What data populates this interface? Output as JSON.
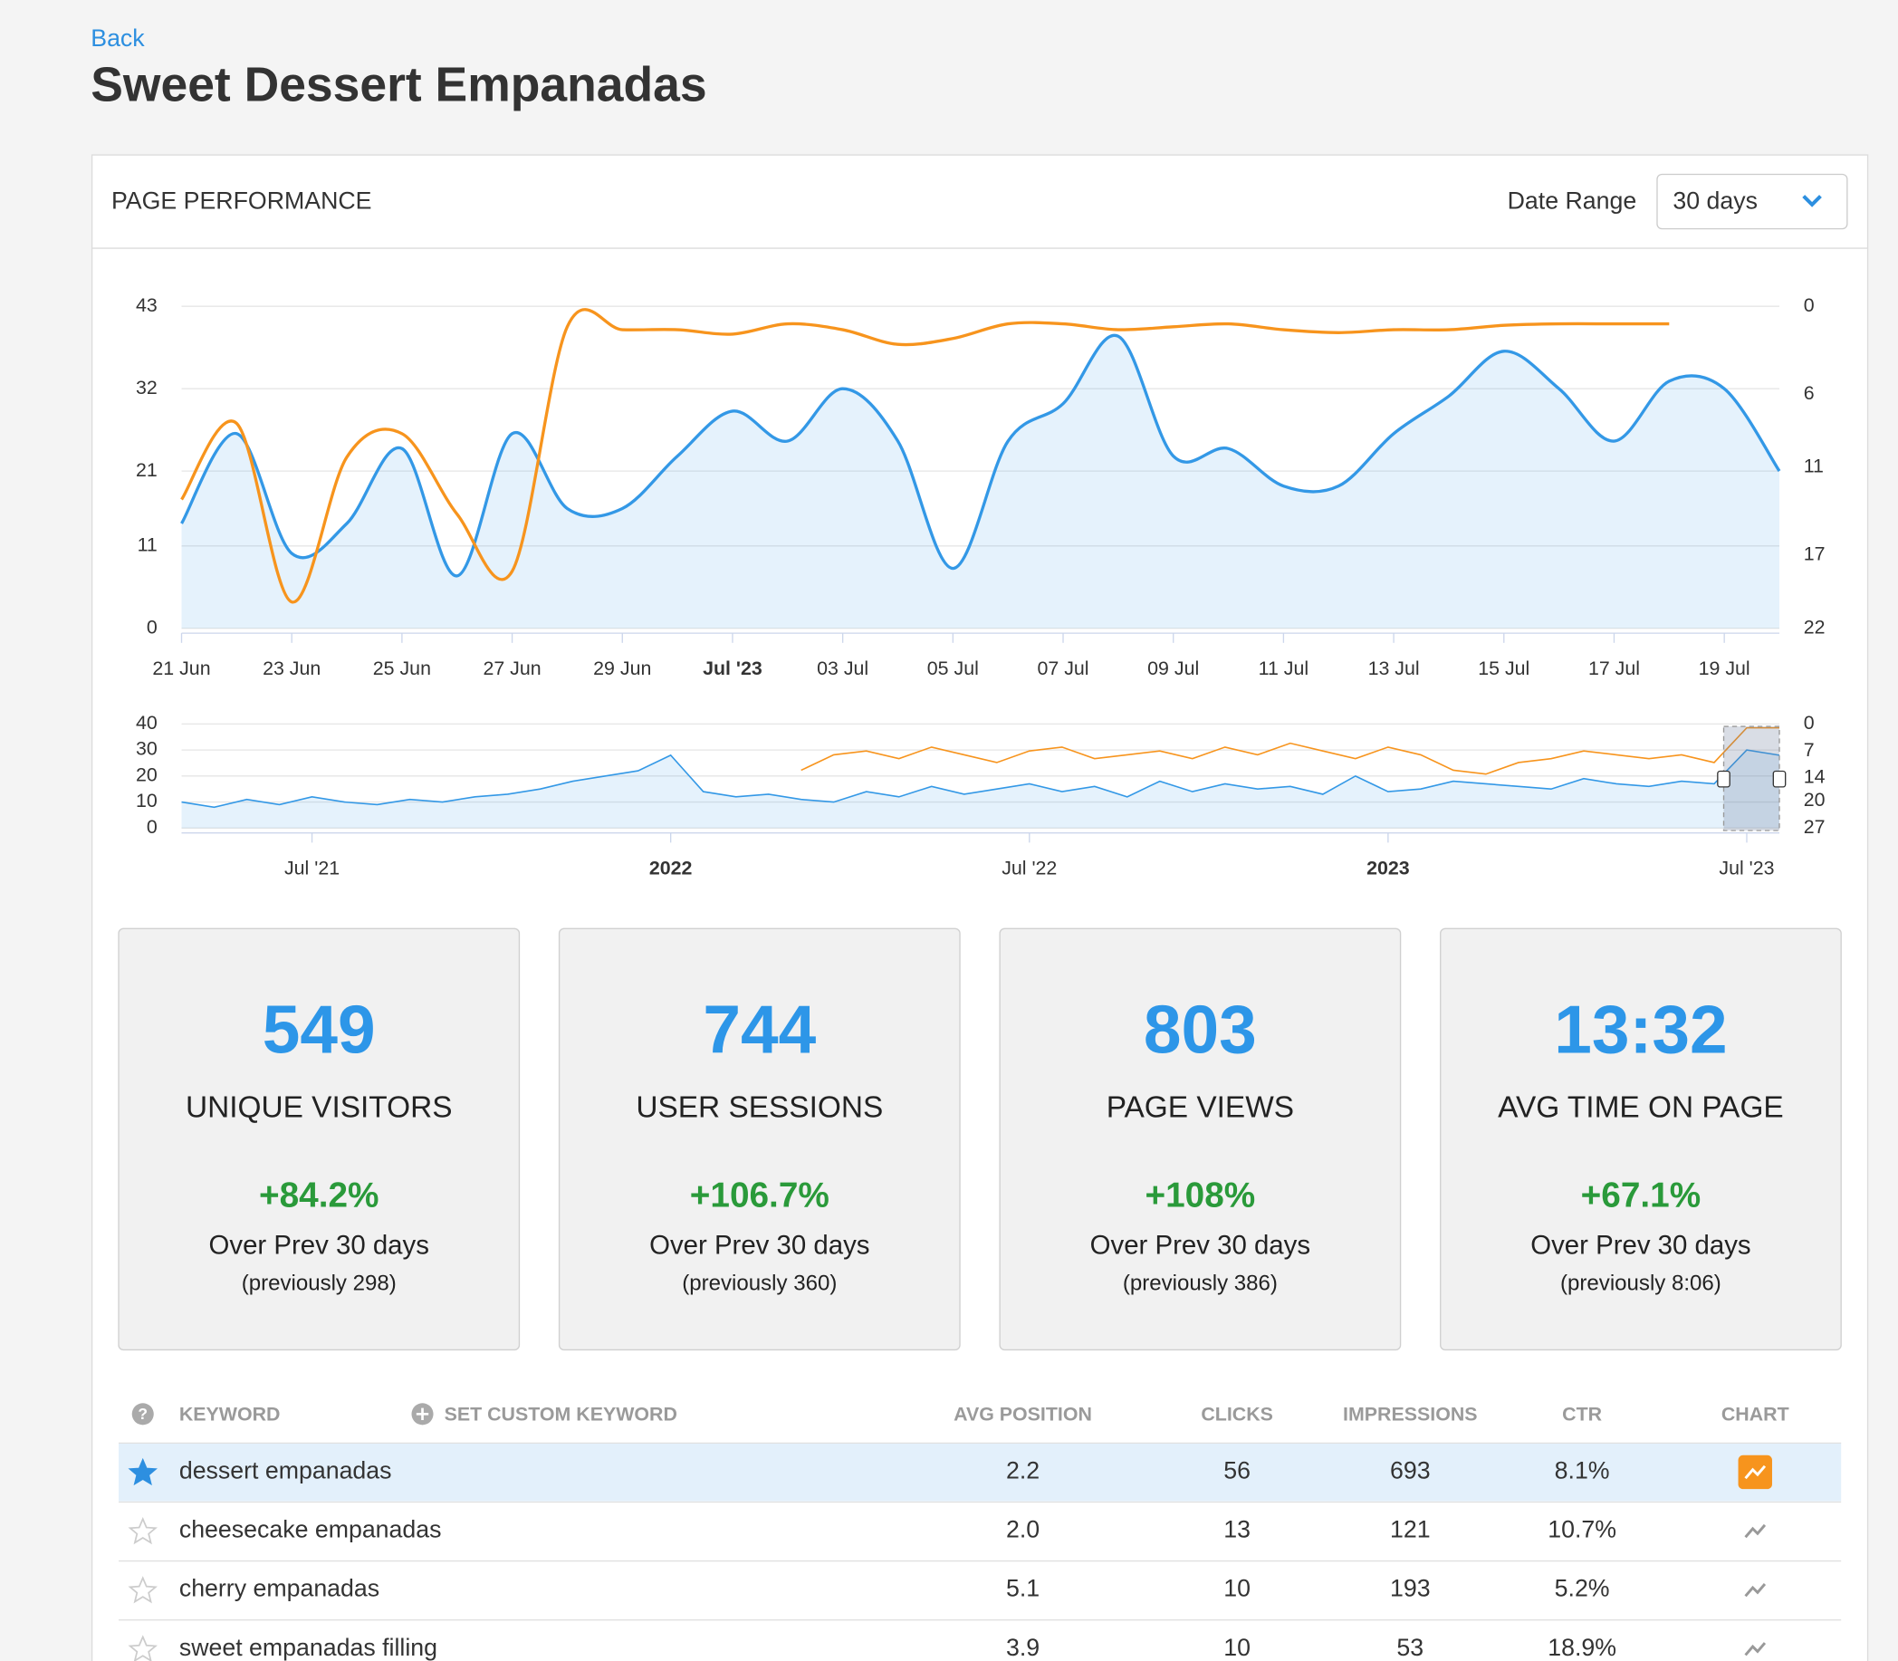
{
  "back": "Back",
  "title": "Sweet Dessert Empanadas",
  "panel": {
    "title": "PAGE PERFORMANCE",
    "date_range_label": "Date Range",
    "date_range": "30 days"
  },
  "chart_data": [
    {
      "type": "line",
      "categories": [
        "21 Jun",
        null,
        "23 Jun",
        null,
        "25 Jun",
        null,
        "27 Jun",
        null,
        "29 Jun",
        null,
        "Jul '23",
        null,
        "03 Jul",
        null,
        "05 Jul",
        null,
        "07 Jul",
        null,
        "09 Jul",
        null,
        "11 Jul",
        null,
        "13 Jul",
        null,
        "15 Jul",
        null,
        "17 Jul",
        null,
        "19 Jul",
        null
      ],
      "series": [
        {
          "color": "#3398e6",
          "area": true,
          "values": [
            14,
            26,
            10,
            14,
            24,
            7,
            26,
            16,
            16,
            23,
            29,
            25,
            32,
            25,
            8,
            25,
            30,
            39,
            23,
            24,
            19,
            19,
            26,
            31,
            37,
            32,
            25,
            33,
            32,
            21
          ]
        },
        {
          "color": "#f7941d",
          "axis": "y2",
          "values": [
            13.2,
            8.0,
            20.2,
            10.3,
            8.7,
            14.2,
            18.1,
            1.4,
            1.6,
            1.6,
            1.9,
            1.2,
            1.6,
            2.6,
            2.2,
            1.2,
            1.2,
            1.6,
            1.4,
            1.2,
            1.6,
            1.8,
            1.6,
            1.6,
            1.3,
            1.2,
            1.2,
            1.2,
            null,
            null
          ]
        }
      ],
      "ylim": [
        0,
        43
      ],
      "yticks": [
        0,
        11,
        21,
        32,
        43
      ],
      "y2lim": [
        0,
        22
      ],
      "y2ticks": [
        0,
        6,
        11,
        17,
        22
      ],
      "y2_reversed": true,
      "grid": true
    },
    {
      "type": "line",
      "categories": [
        null,
        null,
        null,
        null,
        "Jul '21",
        null,
        null,
        null,
        null,
        null,
        null,
        null,
        null,
        null,
        null,
        "2022",
        null,
        null,
        null,
        null,
        null,
        null,
        null,
        null,
        null,
        null,
        "Jul '22",
        null,
        null,
        null,
        null,
        null,
        null,
        null,
        null,
        null,
        null,
        "2023",
        null,
        null,
        null,
        null,
        null,
        null,
        null,
        null,
        null,
        null,
        "Jul '23",
        null
      ],
      "series": [
        {
          "color": "#3398e6",
          "area": true,
          "values": [
            10,
            8,
            11,
            9,
            12,
            10,
            9,
            11,
            10,
            12,
            13,
            15,
            18,
            20,
            22,
            28,
            14,
            12,
            13,
            11,
            10,
            14,
            12,
            16,
            13,
            15,
            17,
            14,
            16,
            12,
            18,
            14,
            17,
            15,
            16,
            13,
            20,
            14,
            15,
            18,
            17,
            16,
            15,
            19,
            17,
            16,
            18,
            17,
            30,
            28
          ]
        },
        {
          "color": "#f7941d",
          "axis": "y2",
          "values": [
            null,
            null,
            null,
            null,
            null,
            null,
            null,
            null,
            null,
            null,
            null,
            null,
            null,
            null,
            null,
            null,
            null,
            null,
            null,
            12,
            8,
            7,
            9,
            6,
            8,
            10,
            7,
            6,
            9,
            8,
            7,
            9,
            6,
            8,
            5,
            7,
            9,
            6,
            8,
            12,
            13,
            10,
            9,
            7,
            8,
            9,
            8,
            10,
            1,
            1
          ]
        }
      ],
      "ylim": [
        0,
        40
      ],
      "yticks": [
        0,
        10,
        20,
        30,
        40
      ],
      "y2lim": [
        0,
        27
      ],
      "y2ticks": [
        0,
        7,
        14,
        20,
        27
      ],
      "y2_reversed": true,
      "grid": true
    }
  ],
  "stats": [
    {
      "value": "549",
      "label": "UNIQUE VISITORS",
      "change": "+84.2%",
      "period": "Over Prev 30 days",
      "previous": "(previously 298)"
    },
    {
      "value": "744",
      "label": "USER SESSIONS",
      "change": "+106.7%",
      "period": "Over Prev 30 days",
      "previous": "(previously 360)"
    },
    {
      "value": "803",
      "label": "PAGE VIEWS",
      "change": "+108%",
      "period": "Over Prev 30 days",
      "previous": "(previously 386)"
    },
    {
      "value": "13:32",
      "label": "AVG TIME ON PAGE",
      "change": "+67.1%",
      "period": "Over Prev 30 days",
      "previous": "(previously 8:06)"
    }
  ],
  "table": {
    "headers": [
      "KEYWORD",
      "SET CUSTOM KEYWORD",
      "AVG POSITION",
      "CLICKS",
      "IMPRESSIONS",
      "CTR",
      "CHART"
    ],
    "rows": [
      [
        "dessert empanadas",
        "2.2",
        "56",
        "693",
        "8.1%"
      ],
      [
        "cheesecake empanadas",
        "2.0",
        "13",
        "121",
        "10.7%"
      ],
      [
        "cherry empanadas",
        "5.1",
        "10",
        "193",
        "5.2%"
      ],
      [
        "sweet empanadas filling",
        "3.9",
        "10",
        "53",
        "18.9%"
      ]
    ]
  }
}
